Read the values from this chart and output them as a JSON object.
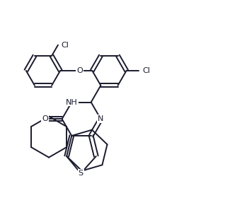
{
  "bg_color": "#ffffff",
  "line_color": "#1a1a2e",
  "line_width": 1.4,
  "figsize": [
    3.25,
    2.97
  ],
  "dpi": 100,
  "xlim": [
    0,
    10
  ],
  "ylim": [
    0,
    9.1
  ]
}
